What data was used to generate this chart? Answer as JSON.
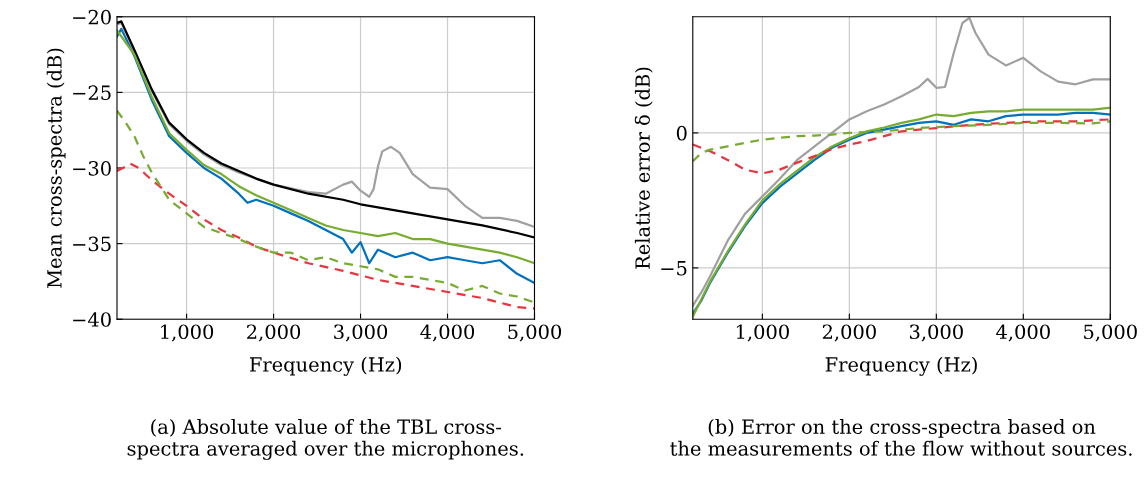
{
  "chart_data": [
    {
      "type": "line",
      "xlabel": "Frequency (Hz)",
      "ylabel": "Mean cross-spectra (dB)",
      "xlim": [
        200,
        5000
      ],
      "ylim": [
        -40,
        -20
      ],
      "xticks": [
        {
          "value": 1000,
          "label": "1,000"
        },
        {
          "value": 2000,
          "label": "2,000"
        },
        {
          "value": 3000,
          "label": "3,000"
        },
        {
          "value": 4000,
          "label": "4,000"
        },
        {
          "value": 5000,
          "label": "5,000"
        }
      ],
      "yticks": [
        {
          "value": -40,
          "label": "−40"
        },
        {
          "value": -35,
          "label": "−35"
        },
        {
          "value": -30,
          "label": "−30"
        },
        {
          "value": -25,
          "label": "−25"
        },
        {
          "value": -20,
          "label": "−20"
        }
      ],
      "grid": true,
      "legend": false,
      "marker": "none",
      "annotations": [
        "(a) Absolute value of the TBL cross-\nspectra averaged over the microphones."
      ],
      "series": [
        {
          "color": "#a0a0a0",
          "line_style": "solid",
          "x": [
            200,
            250,
            400,
            600,
            800,
            1000,
            1200,
            1400,
            1600,
            1800,
            2000,
            2400,
            2600,
            2800,
            2900,
            3000,
            3100,
            3150,
            3200,
            3250,
            3350,
            3450,
            3600,
            3800,
            4000,
            4200,
            4400,
            4600,
            4800,
            5000
          ],
          "values": [
            -20.5,
            -20.4,
            -22.3,
            -24.9,
            -27.1,
            -28.2,
            -29.1,
            -29.8,
            -30.3,
            -30.7,
            -31.1,
            -31.6,
            -31.7,
            -31.1,
            -30.9,
            -31.5,
            -31.9,
            -31.4,
            -29.9,
            -28.9,
            -28.6,
            -29.0,
            -30.4,
            -31.3,
            -31.4,
            -32.5,
            -33.3,
            -33.3,
            -33.5,
            -33.9
          ]
        },
        {
          "color": "#000000",
          "line_style": "solid",
          "x": [
            200,
            250,
            400,
            600,
            800,
            1000,
            1200,
            1400,
            1600,
            1800,
            2000,
            2400,
            2800,
            3000,
            3400,
            3800,
            4000,
            4400,
            4800,
            5000
          ],
          "values": [
            -20.4,
            -20.3,
            -22.2,
            -24.8,
            -27.0,
            -28.1,
            -29.0,
            -29.7,
            -30.2,
            -30.7,
            -31.1,
            -31.7,
            -32.1,
            -32.4,
            -32.8,
            -33.2,
            -33.4,
            -33.8,
            -34.3,
            -34.6
          ]
        },
        {
          "color": "#0072bd",
          "line_style": "solid",
          "x": [
            200,
            250,
            400,
            600,
            800,
            1000,
            1200,
            1400,
            1600,
            1700,
            1800,
            2000,
            2200,
            2400,
            2600,
            2800,
            2900,
            3000,
            3100,
            3200,
            3400,
            3600,
            3800,
            4000,
            4200,
            4400,
            4600,
            4800,
            5000
          ],
          "values": [
            -21.3,
            -20.8,
            -22.6,
            -25.5,
            -27.9,
            -29.0,
            -30.0,
            -30.7,
            -31.7,
            -32.3,
            -32.1,
            -32.5,
            -33.0,
            -33.5,
            -34.1,
            -34.7,
            -35.6,
            -34.9,
            -36.3,
            -35.4,
            -35.9,
            -35.6,
            -36.1,
            -35.9,
            -36.1,
            -36.3,
            -36.1,
            -37.0,
            -37.6
          ]
        },
        {
          "color": "#77ac30",
          "line_style": "solid",
          "x": [
            200,
            400,
            600,
            800,
            1000,
            1200,
            1400,
            1600,
            1800,
            2000,
            2200,
            2400,
            2600,
            2800,
            3000,
            3200,
            3400,
            3600,
            3800,
            4000,
            4200,
            4400,
            4600,
            4800,
            5000
          ],
          "values": [
            -20.9,
            -22.5,
            -25.3,
            -27.7,
            -28.8,
            -29.8,
            -30.4,
            -31.2,
            -31.8,
            -32.3,
            -32.8,
            -33.3,
            -33.8,
            -34.1,
            -34.3,
            -34.5,
            -34.3,
            -34.7,
            -34.7,
            -35.0,
            -35.2,
            -35.4,
            -35.6,
            -35.9,
            -36.3
          ]
        },
        {
          "color": "#e8353f",
          "line_style": "dashed",
          "x": [
            200,
            300,
            350,
            450,
            600,
            800,
            1000,
            1200,
            1400,
            1600,
            1800,
            2000,
            2400,
            2800,
            3200,
            3600,
            4000,
            4400,
            4800,
            5000
          ],
          "values": [
            -30.2,
            -29.9,
            -29.7,
            -30.0,
            -30.8,
            -31.7,
            -32.5,
            -33.4,
            -34.1,
            -34.6,
            -35.2,
            -35.6,
            -36.3,
            -36.8,
            -37.4,
            -37.8,
            -38.2,
            -38.6,
            -39.2,
            -39.3
          ]
        },
        {
          "color": "#77ac30",
          "line_style": "dashed",
          "x": [
            200,
            300,
            400,
            500,
            600,
            800,
            1000,
            1200,
            1400,
            1600,
            1800,
            2000,
            2200,
            2400,
            2600,
            2800,
            3000,
            3200,
            3400,
            3600,
            3800,
            4000,
            4200,
            4400,
            4600,
            4800,
            5000
          ],
          "values": [
            -26.2,
            -27.0,
            -27.9,
            -29.2,
            -30.3,
            -32.1,
            -33.0,
            -33.9,
            -34.3,
            -34.7,
            -35.2,
            -35.6,
            -35.6,
            -36.1,
            -35.9,
            -36.3,
            -36.5,
            -36.7,
            -37.2,
            -37.2,
            -37.4,
            -37.6,
            -38.1,
            -37.8,
            -38.3,
            -38.5,
            -38.9
          ]
        }
      ]
    },
    {
      "type": "line",
      "xlabel": "Frequency (Hz)",
      "ylabel": "Relative error δ (dB)",
      "xlim": [
        200,
        5000
      ],
      "ylim": [
        -6.9,
        4.3
      ],
      "xticks": [
        {
          "value": 1000,
          "label": "1,000"
        },
        {
          "value": 2000,
          "label": "2,000"
        },
        {
          "value": 3000,
          "label": "3,000"
        },
        {
          "value": 4000,
          "label": "4,000"
        },
        {
          "value": 5000,
          "label": "5,000"
        }
      ],
      "yticks": [
        {
          "value": -5,
          "label": "−5"
        },
        0
      ],
      "grid": true,
      "legend": false,
      "marker": "none",
      "annotations": [
        "(b) Error on the cross-spectra based on\nthe measurements of the flow without sources."
      ],
      "series": [
        {
          "color": "#a0a0a0",
          "line_style": "solid",
          "x": [
            200,
            300,
            400,
            600,
            800,
            1000,
            1200,
            1400,
            1600,
            1800,
            2000,
            2200,
            2400,
            2600,
            2800,
            2900,
            3000,
            3100,
            3200,
            3300,
            3380,
            3450,
            3600,
            3800,
            4000,
            4200,
            4400,
            4600,
            4800,
            5000
          ],
          "values": [
            -6.4,
            -5.9,
            -5.3,
            -4.0,
            -3.0,
            -2.35,
            -1.7,
            -1.0,
            -0.5,
            0.0,
            0.5,
            0.8,
            1.05,
            1.36,
            1.7,
            2.0,
            1.67,
            1.7,
            2.96,
            4.07,
            4.26,
            3.7,
            2.9,
            2.5,
            2.78,
            2.28,
            1.9,
            1.8,
            1.98,
            1.98
          ]
        },
        {
          "color": "#0072bd",
          "line_style": "solid",
          "x": [
            200,
            300,
            400,
            600,
            800,
            1000,
            1200,
            1400,
            1600,
            1800,
            2000,
            2200,
            2400,
            2600,
            2800,
            3000,
            3200,
            3400,
            3600,
            3800,
            4000,
            4200,
            4400,
            4600,
            4800,
            5000
          ],
          "values": [
            -6.7,
            -6.2,
            -5.55,
            -4.45,
            -3.45,
            -2.6,
            -2.0,
            -1.5,
            -1.0,
            -0.55,
            -0.25,
            0.0,
            0.12,
            0.25,
            0.37,
            0.43,
            0.3,
            0.5,
            0.43,
            0.62,
            0.68,
            0.68,
            0.68,
            0.74,
            0.74,
            0.68
          ]
        },
        {
          "color": "#77ac30",
          "line_style": "solid",
          "x": [
            200,
            400,
            600,
            800,
            1000,
            1200,
            1400,
            1600,
            1800,
            2000,
            2200,
            2400,
            2600,
            2800,
            3000,
            3200,
            3400,
            3600,
            3800,
            4000,
            4200,
            4400,
            4600,
            4800,
            5000
          ],
          "values": [
            -6.8,
            -5.5,
            -4.4,
            -3.4,
            -2.5,
            -1.9,
            -1.4,
            -0.9,
            -0.5,
            -0.2,
            0.06,
            0.2,
            0.37,
            0.5,
            0.68,
            0.62,
            0.74,
            0.8,
            0.8,
            0.86,
            0.86,
            0.86,
            0.86,
            0.86,
            0.93
          ]
        },
        {
          "color": "#e8353f",
          "line_style": "dashed",
          "x": [
            200,
            400,
            600,
            800,
            1000,
            1200,
            1400,
            1600,
            1800,
            2000,
            2200,
            2400,
            2600,
            2800,
            3000,
            3400,
            3800,
            4200,
            4600,
            5000
          ],
          "values": [
            -0.43,
            -0.68,
            -1.0,
            -1.36,
            -1.5,
            -1.36,
            -1.1,
            -0.86,
            -0.6,
            -0.43,
            -0.3,
            -0.12,
            0.06,
            0.12,
            0.18,
            0.3,
            0.37,
            0.43,
            0.43,
            0.5
          ]
        },
        {
          "color": "#77ac30",
          "line_style": "dashed",
          "x": [
            200,
            300,
            400,
            600,
            800,
            1000,
            1200,
            1400,
            1600,
            1800,
            2000,
            2400,
            2800,
            3200,
            3600,
            4000,
            4400,
            4800,
            5000
          ],
          "values": [
            -1.05,
            -0.74,
            -0.62,
            -0.5,
            -0.37,
            -0.25,
            -0.18,
            -0.12,
            -0.1,
            -0.06,
            0.0,
            0.06,
            0.18,
            0.25,
            0.3,
            0.37,
            0.37,
            0.35,
            0.43
          ]
        }
      ]
    }
  ]
}
